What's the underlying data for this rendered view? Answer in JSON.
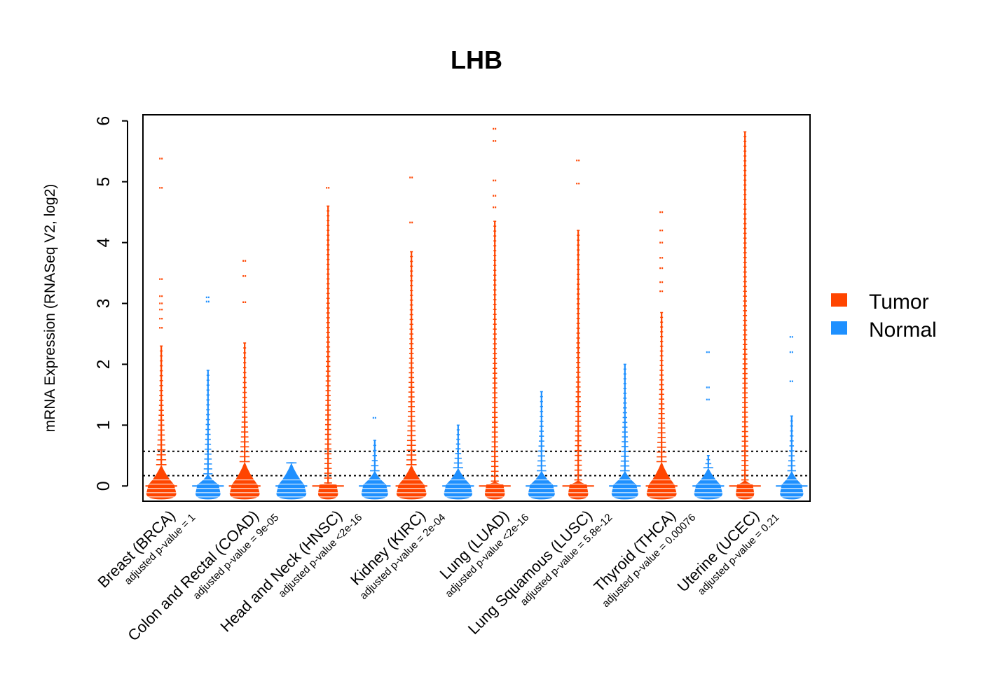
{
  "chart_data": {
    "type": "beeswarm",
    "title": "LHB",
    "ylabel": "mRNA Expression (RNASeq V2, log2)",
    "xlabel": "",
    "ylim": [
      -0.25,
      6.1
    ],
    "yticks": [
      0,
      1,
      2,
      3,
      4,
      5,
      6
    ],
    "reference_lines": [
      0.17,
      0.57
    ],
    "colors": {
      "Tumor": "#ff4500",
      "Normal": "#1e90ff"
    },
    "legend": {
      "position": "right",
      "entries": [
        "Tumor",
        "Normal"
      ]
    },
    "categories": [
      {
        "label": "Breast (BRCA)",
        "pvalue": "adjusted p-value = 1",
        "tumor": {
          "median": 0.0,
          "dense_max": 0.35,
          "core_width": 0.9,
          "whisker_max": 2.3,
          "outliers": [
            2.6,
            2.75,
            2.9,
            3.0,
            3.12,
            3.4,
            4.9,
            5.38
          ]
        },
        "normal": {
          "median": 0.0,
          "dense_max": 0.2,
          "core_width": 0.75,
          "whisker_max": 1.9,
          "outliers": [
            3.03,
            3.1
          ]
        }
      },
      {
        "label": "Colon and Rectal (COAD)",
        "pvalue": "adjusted p-value = 9e-05",
        "tumor": {
          "median": 0.0,
          "dense_max": 0.4,
          "core_width": 0.9,
          "whisker_max": 2.35,
          "outliers": [
            3.02,
            3.45,
            3.7
          ]
        },
        "normal": {
          "median": 0.0,
          "dense_max": 0.38,
          "core_width": 0.9,
          "whisker_max": 0.38,
          "outliers": []
        }
      },
      {
        "label": "Head and Neck (HNSC)",
        "pvalue": "adjusted p-value <2e-16",
        "tumor": {
          "median": 0.0,
          "dense_max": 0.05,
          "core_width": 0.6,
          "whisker_max": 4.6,
          "outliers": [
            4.9
          ]
        },
        "normal": {
          "median": 0.0,
          "dense_max": 0.25,
          "core_width": 0.8,
          "whisker_max": 0.75,
          "outliers": [
            1.12
          ]
        }
      },
      {
        "label": "Kidney (KIRC)",
        "pvalue": "adjusted p-value = 2e-04",
        "tumor": {
          "median": 0.0,
          "dense_max": 0.35,
          "core_width": 0.9,
          "whisker_max": 3.85,
          "outliers": [
            4.33,
            5.07
          ]
        },
        "normal": {
          "median": 0.0,
          "dense_max": 0.3,
          "core_width": 0.85,
          "whisker_max": 1.0,
          "outliers": []
        }
      },
      {
        "label": "Lung (LUAD)",
        "pvalue": "adjusted p-value <2e-16",
        "tumor": {
          "median": 0.0,
          "dense_max": 0.08,
          "core_width": 0.6,
          "whisker_max": 4.35,
          "outliers": [
            4.58,
            4.77,
            5.02,
            5.67,
            5.87
          ]
        },
        "normal": {
          "median": 0.0,
          "dense_max": 0.25,
          "core_width": 0.8,
          "whisker_max": 1.55,
          "outliers": []
        }
      },
      {
        "label": "Lung Squamous (LUSC)",
        "pvalue": "adjusted p-value = 5.8e-12",
        "tumor": {
          "median": 0.0,
          "dense_max": 0.1,
          "core_width": 0.6,
          "whisker_max": 4.2,
          "outliers": [
            4.97,
            5.35
          ]
        },
        "normal": {
          "median": 0.0,
          "dense_max": 0.25,
          "core_width": 0.8,
          "whisker_max": 2.0,
          "outliers": []
        }
      },
      {
        "label": "Thyroid (THCA)",
        "pvalue": "adjusted p-value = 0.00076",
        "tumor": {
          "median": 0.0,
          "dense_max": 0.4,
          "core_width": 0.9,
          "whisker_max": 2.85,
          "outliers": [
            3.2,
            3.35,
            3.58,
            3.75,
            4.0,
            4.2,
            4.5
          ]
        },
        "normal": {
          "median": 0.0,
          "dense_max": 0.3,
          "core_width": 0.85,
          "whisker_max": 0.5,
          "outliers": [
            1.42,
            1.62,
            2.2
          ]
        }
      },
      {
        "label": "Uterine (UCEC)",
        "pvalue": "adjusted p-value = 0.21",
        "tumor": {
          "median": 0.0,
          "dense_max": 0.1,
          "core_width": 0.55,
          "whisker_max": 5.82,
          "outliers": []
        },
        "normal": {
          "median": 0.0,
          "dense_max": 0.25,
          "core_width": 0.7,
          "whisker_max": 1.15,
          "outliers": [
            1.72,
            2.2,
            2.45
          ]
        }
      }
    ]
  }
}
